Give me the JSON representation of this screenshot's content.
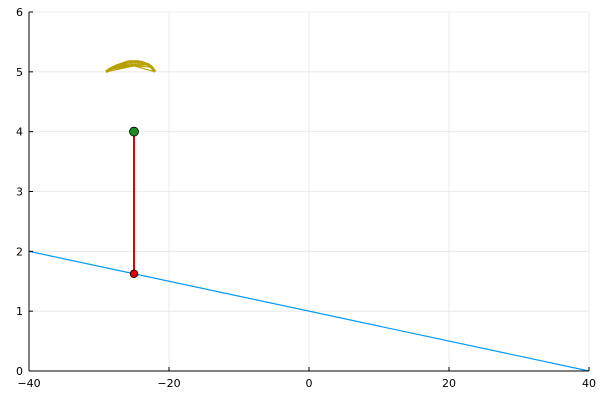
{
  "chart_data": {
    "type": "line",
    "title": "",
    "xlabel": "",
    "ylabel": "",
    "xlim": [
      -40,
      40
    ],
    "ylim": [
      0,
      6
    ],
    "x_ticks": [
      -40,
      -20,
      0,
      20,
      40
    ],
    "x_tick_labels": [
      "−40",
      "−20",
      "0",
      "20",
      "40"
    ],
    "y_ticks": [
      0,
      1,
      2,
      3,
      4,
      5,
      6
    ],
    "y_tick_labels": [
      "0",
      "1",
      "2",
      "3",
      "4",
      "5",
      "6"
    ],
    "grid": true,
    "legend": "none",
    "series": [
      {
        "kind": "line",
        "x": [
          -40,
          40
        ],
        "y": [
          2,
          0
        ],
        "color": "#009AFA"
      },
      {
        "kind": "segment",
        "x": [
          -25,
          -25
        ],
        "y": [
          4.0,
          1.625
        ],
        "color": "#E80000"
      },
      {
        "kind": "point",
        "x": [
          -25
        ],
        "y": [
          4.0
        ],
        "color": "#1E8C1E"
      },
      {
        "kind": "point",
        "x": [
          -25
        ],
        "y": [
          1.625
        ],
        "color": "#E80000"
      },
      {
        "kind": "fan",
        "center": [
          -25,
          5.1
        ],
        "x": [
          -29,
          -28.5,
          -28,
          -27.5,
          -27,
          -26.5,
          -26,
          -25.5,
          -25,
          -24.5,
          -24,
          -23.5,
          -23,
          -22.5,
          -22
        ],
        "y": [
          5.0,
          5.04,
          5.07,
          5.1,
          5.12,
          5.14,
          5.16,
          5.17,
          5.17,
          5.17,
          5.16,
          5.14,
          5.12,
          5.08,
          5.0
        ],
        "color": "#B8A000"
      }
    ]
  },
  "colors": {
    "grid": "#e6e6e6",
    "axis": "#000000"
  }
}
